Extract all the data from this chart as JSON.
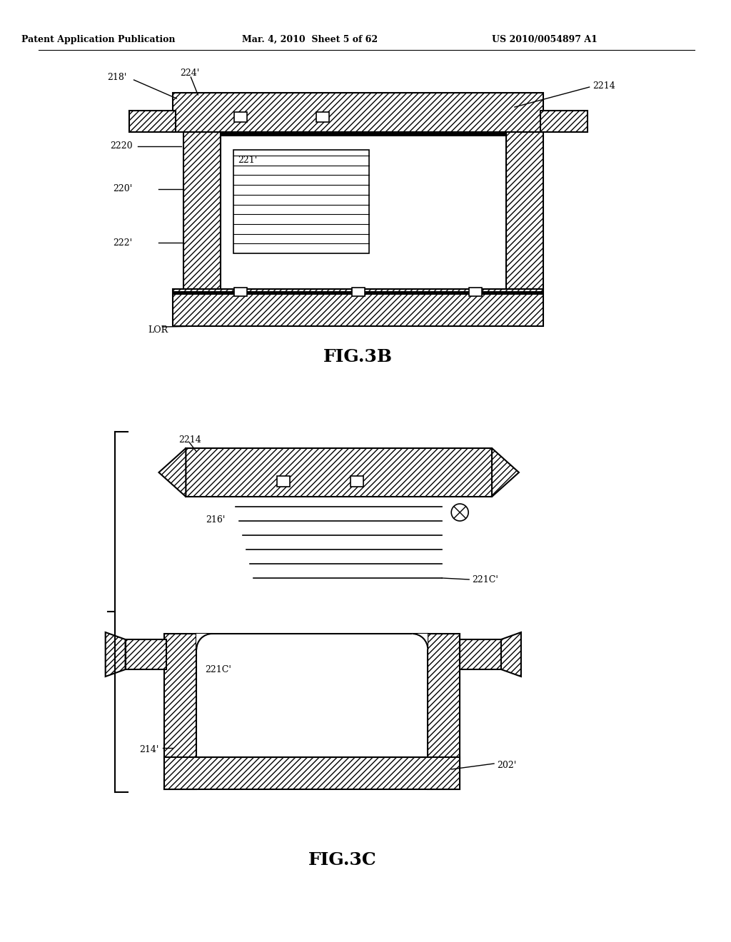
{
  "header_left": "Patent Application Publication",
  "header_mid": "Mar. 4, 2010  Sheet 5 of 62",
  "header_right": "US 2010/0054897 A1",
  "fig3b_title": "FIG.3B",
  "fig3c_title": "FIG.3C",
  "bg_color": "#ffffff"
}
